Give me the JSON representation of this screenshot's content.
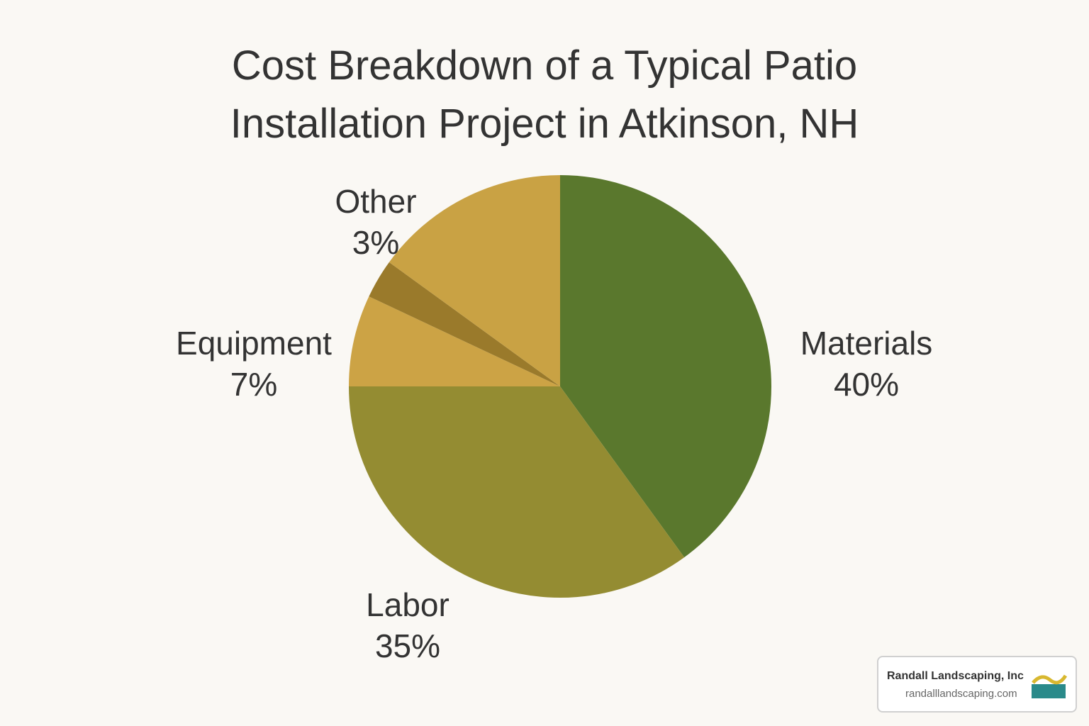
{
  "chart_data": {
    "type": "pie",
    "title": "Cost Breakdown of a Typical Patio Installation Project in Atkinson, NH",
    "categories": [
      "Materials",
      "Labor",
      "Equipment",
      "Other",
      null
    ],
    "values": [
      40,
      35,
      7,
      3,
      15
    ],
    "value_labels": [
      "40%",
      "35%",
      "7%",
      "3%",
      null
    ],
    "colors": [
      "#5a782d",
      "#948c32",
      "#cca345",
      "#9a7a2b",
      "#c9a244"
    ]
  },
  "watermark": {
    "name": "Randall Landscaping, Inc",
    "url": "randalllandscaping.com"
  }
}
